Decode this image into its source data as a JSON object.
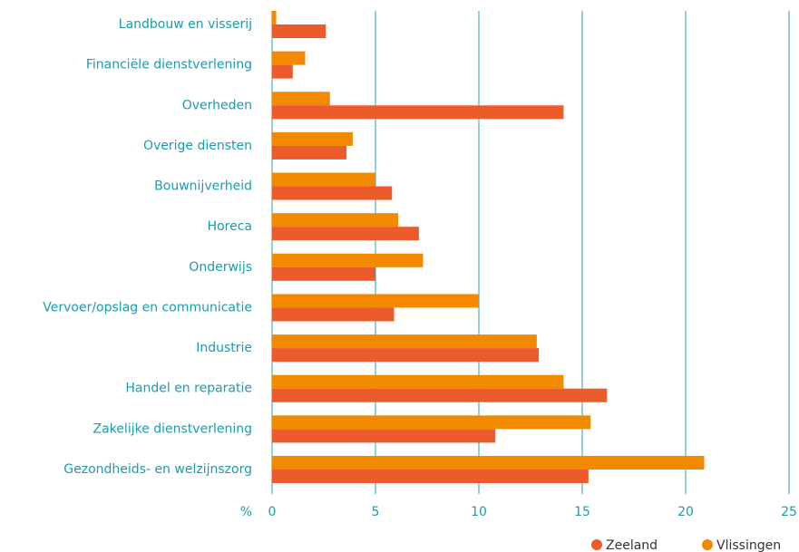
{
  "chart_data": {
    "type": "bar",
    "orientation": "horizontal",
    "xlabel": "%",
    "categories": [
      "Landbouw en visserij",
      "Financiële dienstverlening",
      "Overheden",
      "Overige diensten",
      "Bouwnijverheid",
      "Horeca",
      "Onderwijs",
      "Vervoer/opslag en communicatie",
      "Industrie",
      "Handel en reparatie",
      "Zakelijke dienstverlening",
      "Gezondheids- en welzijnszorg"
    ],
    "series": [
      {
        "name": "Zeeland",
        "color": "#eb5b2b",
        "values": [
          2.6,
          1.0,
          14.1,
          3.6,
          5.8,
          7.1,
          5.0,
          5.9,
          12.9,
          16.2,
          10.8,
          15.3
        ]
      },
      {
        "name": "Vlissingen",
        "color": "#f18a00",
        "values": [
          0.2,
          1.6,
          2.8,
          3.9,
          5.0,
          6.1,
          7.3,
          10.0,
          12.8,
          14.1,
          15.4,
          20.9
        ]
      }
    ],
    "xlim": [
      0,
      25
    ],
    "xticks": [
      0,
      5,
      10,
      15,
      20,
      25
    ],
    "grid": true
  }
}
